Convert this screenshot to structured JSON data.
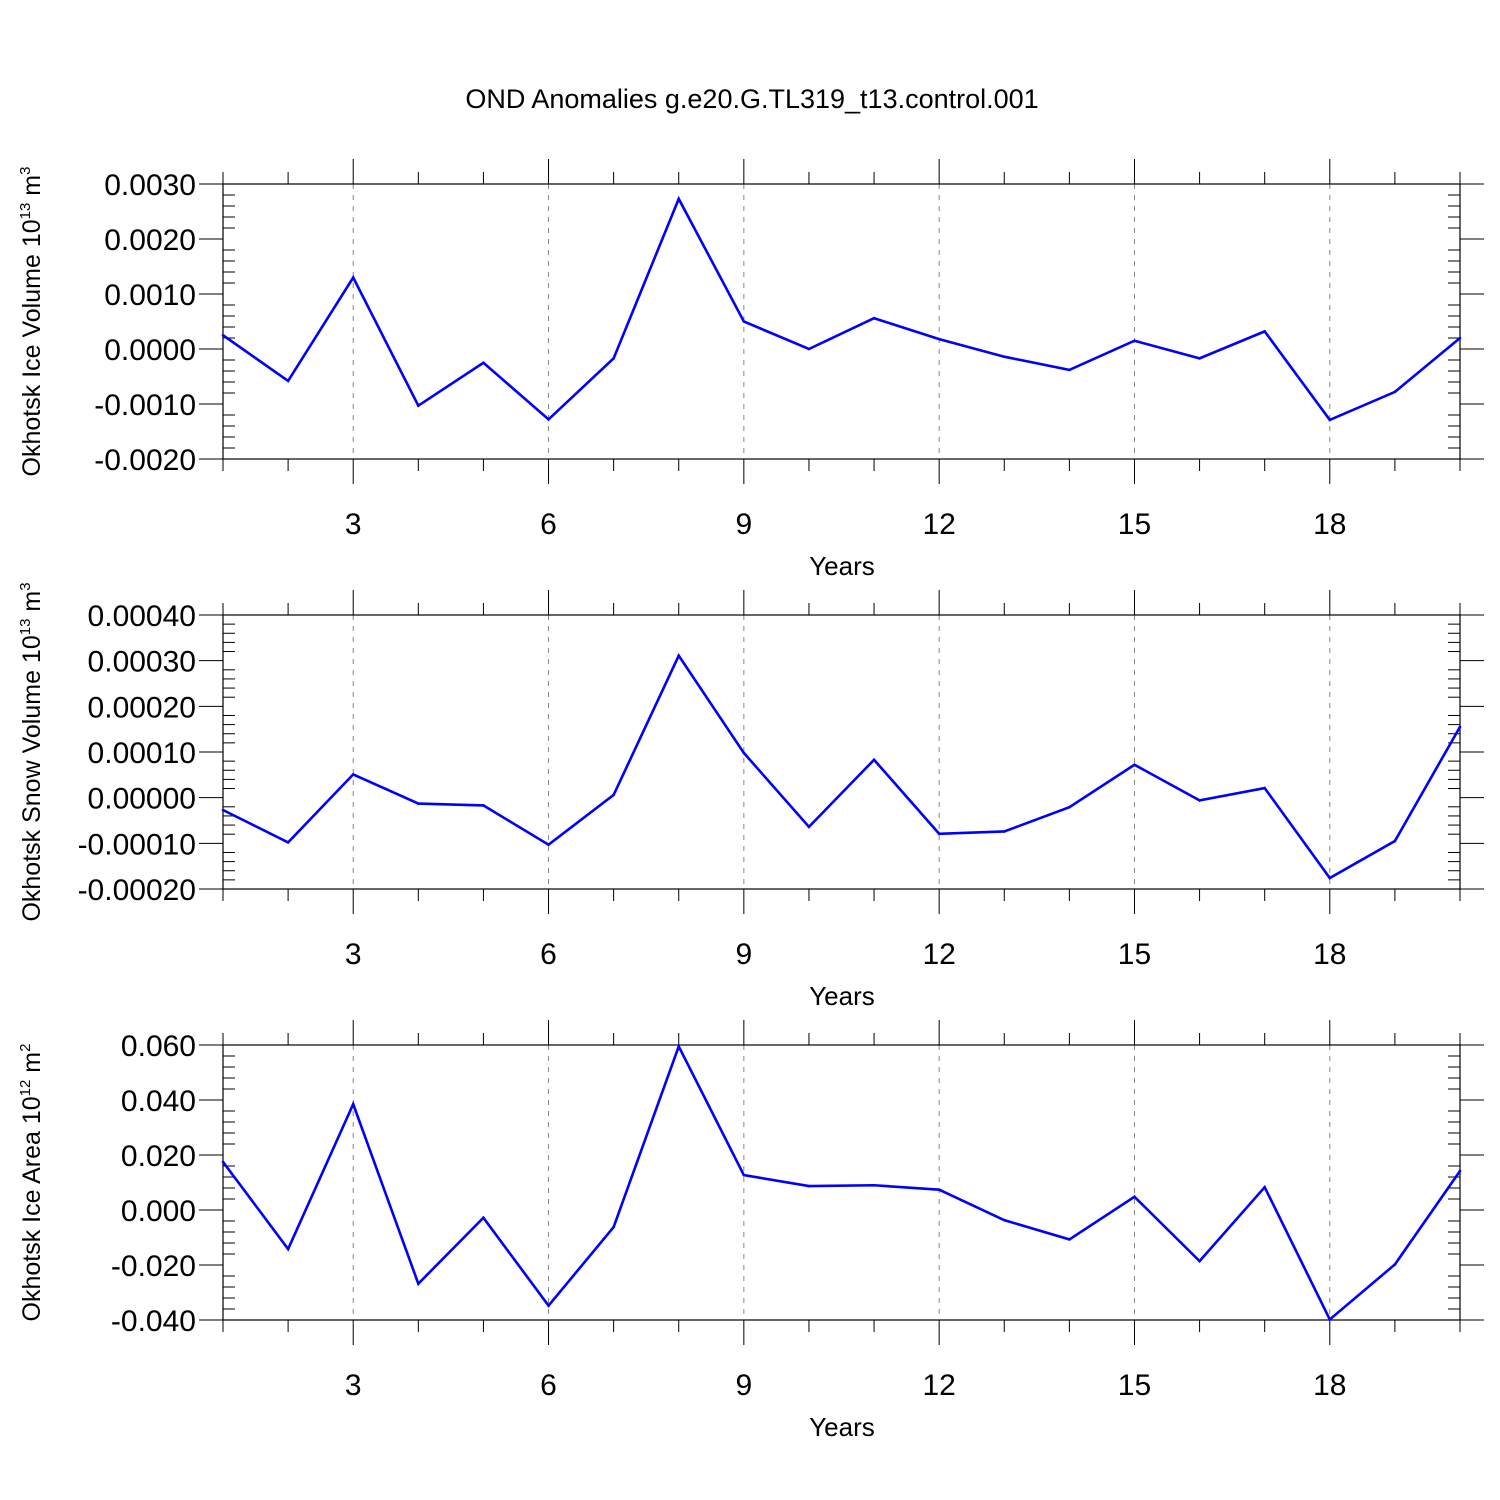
{
  "title": "OND Anomalies g.e20.G.TL319_t13.control.001",
  "line_color": "#0000ff",
  "axis_color": "#000000",
  "grid_color": "#888888",
  "chart_data": [
    {
      "type": "line",
      "ylabel": "Okhotsk Ice Volume 10",
      "ylabel_exp": "13",
      "ylabel_unit": " m",
      "ylabel_unit_exp": "3",
      "xlabel": "Years",
      "xlim": [
        1,
        20
      ],
      "ylim": [
        -0.002,
        0.003
      ],
      "yticks": [
        -0.002,
        -0.001,
        0.0,
        0.001,
        0.002,
        0.003
      ],
      "ytick_labels": [
        "-0.0020",
        "-0.0010",
        "0.0000",
        "0.0010",
        "0.0020",
        "0.0030"
      ],
      "xticks": [
        3,
        6,
        9,
        12,
        15,
        18
      ],
      "xtick_labels": [
        "3",
        "6",
        "9",
        "12",
        "15",
        "18"
      ],
      "grid_x": [
        3,
        6,
        9,
        12,
        15,
        18
      ],
      "x": [
        1,
        2,
        3,
        4,
        5,
        6,
        7,
        8,
        9,
        10,
        11,
        12,
        13,
        14,
        15,
        16,
        17,
        18,
        19,
        20
      ],
      "series": [
        {
          "name": "Okhotsk Ice Volume",
          "values": [
            0.00025,
            -0.00058,
            0.0013,
            -0.00103,
            -0.00025,
            -0.00128,
            -0.00017,
            0.00273,
            0.0005,
            0.0,
            0.00056,
            0.00018,
            -0.00014,
            -0.00038,
            0.00015,
            -0.00017,
            0.00032,
            -0.00129,
            -0.00078,
            0.0002
          ]
        }
      ]
    },
    {
      "type": "line",
      "ylabel": "Okhotsk Snow Volume 10",
      "ylabel_exp": "13",
      "ylabel_unit": " m",
      "ylabel_unit_exp": "3",
      "xlabel": "Years",
      "xlim": [
        1,
        20
      ],
      "ylim": [
        -0.0002,
        0.0004
      ],
      "yticks": [
        -0.0002,
        -0.0001,
        0.0,
        0.0001,
        0.0002,
        0.0003,
        0.0004
      ],
      "ytick_labels": [
        "-0.00020",
        "-0.00010",
        "0.00000",
        "0.00010",
        "0.00020",
        "0.00030",
        "0.00040"
      ],
      "xticks": [
        3,
        6,
        9,
        12,
        15,
        18
      ],
      "xtick_labels": [
        "3",
        "6",
        "9",
        "12",
        "15",
        "18"
      ],
      "grid_x": [
        3,
        6,
        9,
        12,
        15,
        18
      ],
      "x": [
        1,
        2,
        3,
        4,
        5,
        6,
        7,
        8,
        9,
        10,
        11,
        12,
        13,
        14,
        15,
        16,
        17,
        18,
        19,
        20
      ],
      "series": [
        {
          "name": "Okhotsk Snow Volume",
          "values": [
            -2.7e-05,
            -9.8e-05,
            5.1e-05,
            -1.3e-05,
            -1.7e-05,
            -0.000103,
            6e-06,
            0.000311,
            9.8e-05,
            -6.4e-05,
            8.3e-05,
            -7.9e-05,
            -7.4e-05,
            -2.1e-05,
            7.2e-05,
            -6e-06,
            2.1e-05,
            -0.000176,
            -9.5e-05,
            0.000155
          ]
        }
      ]
    },
    {
      "type": "line",
      "ylabel": "Okhotsk Ice Area 10",
      "ylabel_exp": "12",
      "ylabel_unit": " m",
      "ylabel_unit_exp": "2",
      "xlabel": "Years",
      "xlim": [
        1,
        20
      ],
      "ylim": [
        -0.04,
        0.06
      ],
      "yticks": [
        -0.04,
        -0.02,
        0.0,
        0.02,
        0.04,
        0.06
      ],
      "ytick_labels": [
        "-0.040",
        "-0.020",
        "0.000",
        "0.020",
        "0.040",
        "0.060"
      ],
      "xticks": [
        3,
        6,
        9,
        12,
        15,
        18
      ],
      "xtick_labels": [
        "3",
        "6",
        "9",
        "12",
        "15",
        "18"
      ],
      "grid_x": [
        3,
        6,
        9,
        12,
        15,
        18
      ],
      "x": [
        1,
        2,
        3,
        4,
        5,
        6,
        7,
        8,
        9,
        10,
        11,
        12,
        13,
        14,
        15,
        16,
        17,
        18,
        19,
        20
      ],
      "series": [
        {
          "name": "Okhotsk Ice Area",
          "values": [
            0.0175,
            -0.0142,
            0.0385,
            -0.0268,
            -0.0028,
            -0.0348,
            -0.0062,
            0.0595,
            0.0127,
            0.0087,
            0.009,
            0.0074,
            -0.0037,
            -0.0107,
            0.0048,
            -0.0186,
            0.0083,
            -0.0398,
            -0.0198,
            0.0142
          ]
        }
      ]
    }
  ]
}
